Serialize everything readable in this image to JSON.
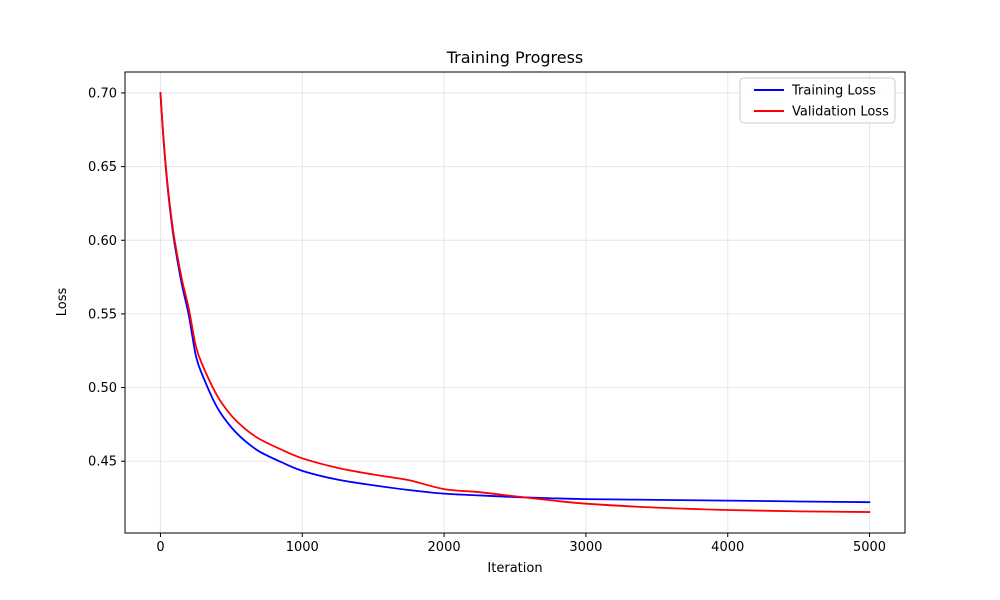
{
  "figure": {
    "background": "#ffffff",
    "spine_color": "#000000",
    "grid_color": "#e6e6e6",
    "tick_color": "#000000",
    "legend": {
      "border_color": "#cccccc",
      "background": "rgba(255,255,255,0.85)",
      "position": "upper-right"
    }
  },
  "chart_data": {
    "type": "line",
    "title": "Training Progress",
    "xlabel": "Iteration",
    "ylabel": "Loss",
    "xlim": [
      -250,
      5250
    ],
    "ylim": [
      0.4013,
      0.7142
    ],
    "grid": true,
    "legend_position": "upper right",
    "x_ticks": [
      0,
      1000,
      2000,
      3000,
      4000,
      5000
    ],
    "x_tick_labels": [
      "0",
      "1000",
      "2000",
      "3000",
      "4000",
      "5000"
    ],
    "y_ticks": [
      0.45,
      0.5,
      0.55,
      0.6,
      0.65,
      0.7
    ],
    "y_tick_labels": [
      "0.45",
      "0.50",
      "0.55",
      "0.60",
      "0.65",
      "0.70"
    ],
    "x": [
      0,
      10,
      25,
      50,
      75,
      100,
      150,
      200,
      250,
      300,
      400,
      500,
      600,
      700,
      850,
      1000,
      1250,
      1500,
      1750,
      2000,
      2250,
      2500,
      2750,
      3000,
      3500,
      4000,
      4500,
      5000
    ],
    "series": [
      {
        "name": "Training Loss",
        "color": "#0000ff",
        "values": [
          0.7,
          0.6845,
          0.664,
          0.6365,
          0.615,
          0.5975,
          0.5705,
          0.549,
          0.5215,
          0.5075,
          0.4865,
          0.473,
          0.4635,
          0.4565,
          0.4495,
          0.4435,
          0.4375,
          0.4337,
          0.4305,
          0.428,
          0.4268,
          0.4257,
          0.4249,
          0.4243,
          0.4238,
          0.4233,
          0.4227,
          0.4222
        ]
      },
      {
        "name": "Validation Loss",
        "color": "#ff0000",
        "values": [
          0.7,
          0.685,
          0.665,
          0.638,
          0.617,
          0.6,
          0.574,
          0.5535,
          0.528,
          0.5145,
          0.4945,
          0.481,
          0.4718,
          0.465,
          0.458,
          0.452,
          0.4455,
          0.441,
          0.4372,
          0.4311,
          0.429,
          0.4262,
          0.4235,
          0.4212,
          0.4185,
          0.4169,
          0.416,
          0.4155
        ]
      }
    ]
  }
}
